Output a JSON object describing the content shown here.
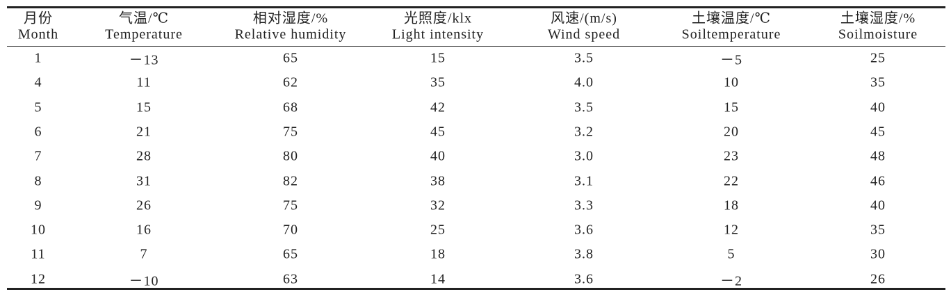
{
  "table": {
    "headers": [
      {
        "zh": "月份",
        "en": "Month"
      },
      {
        "zh": "气温/℃",
        "en": "Temperature"
      },
      {
        "zh": "相对湿度/%",
        "en": "Relative humidity"
      },
      {
        "zh": "光照度/klx",
        "en": "Light intensity"
      },
      {
        "zh": "风速/(m/s)",
        "en": "Wind speed"
      },
      {
        "zh": "土壤温度/℃",
        "en": "Soiltemperature"
      },
      {
        "zh": "土壤湿度/%",
        "en": "Soilmoisture"
      }
    ],
    "rows": [
      [
        "1",
        "－13",
        "65",
        "15",
        "3.5",
        "－5",
        "25"
      ],
      [
        "4",
        "11",
        "62",
        "35",
        "4.0",
        "10",
        "35"
      ],
      [
        "5",
        "15",
        "68",
        "42",
        "3.5",
        "15",
        "40"
      ],
      [
        "6",
        "21",
        "75",
        "45",
        "3.2",
        "20",
        "45"
      ],
      [
        "7",
        "28",
        "80",
        "40",
        "3.0",
        "23",
        "48"
      ],
      [
        "8",
        "31",
        "82",
        "38",
        "3.1",
        "22",
        "46"
      ],
      [
        "9",
        "26",
        "75",
        "32",
        "3.3",
        "18",
        "40"
      ],
      [
        "10",
        "16",
        "70",
        "25",
        "3.6",
        "12",
        "35"
      ],
      [
        "11",
        "7",
        "65",
        "18",
        "3.8",
        "5",
        "30"
      ],
      [
        "12",
        "－10",
        "63",
        "14",
        "3.6",
        "－2",
        "26"
      ]
    ]
  }
}
